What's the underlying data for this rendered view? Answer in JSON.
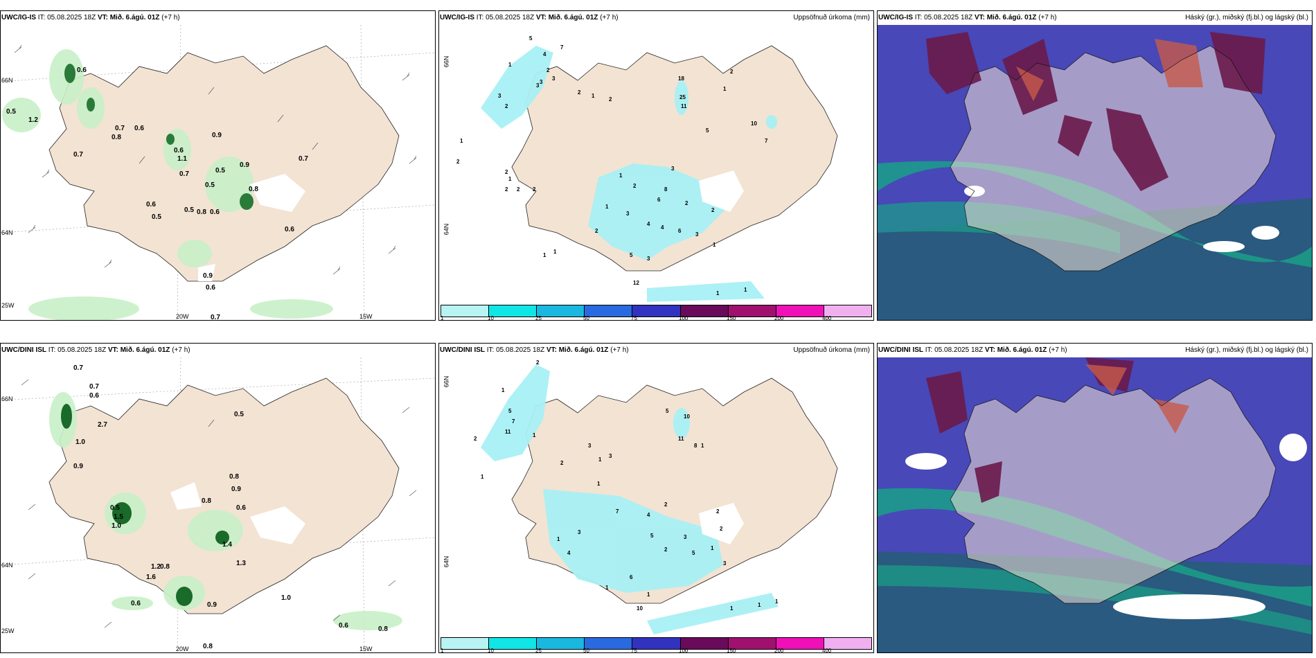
{
  "panels": [
    {
      "title_bold": "UWC/IG-IS",
      "title_rest": " IT: 05.08.2025 18Z ",
      "vt_bold": "VT: Mið. 6.ágú. 01Z",
      "vt_rest": " (+7 h)",
      "right": ""
    },
    {
      "title_bold": "UWC/IG-IS",
      "title_rest": " IT: 05.08.2025 18Z ",
      "vt_bold": "VT: Mið. 6.ágú. 01Z",
      "vt_rest": " (+7 h)",
      "right": "Uppsöfnuð úrkoma (mm)"
    },
    {
      "title_bold": "UWC/IG-IS",
      "title_rest": " IT: 05.08.2025 18Z ",
      "vt_bold": "VT: Mið. 6.ágú. 01Z",
      "vt_rest": " (+7 h)",
      "right": "Háský (gr.), miðský (fj.bl.) og lágský (bl.)"
    },
    {
      "title_bold": "UWC/DINI ISL",
      "title_rest": " IT: 05.08.2025 18Z ",
      "vt_bold": "VT: Mið. 6.ágú. 01Z",
      "vt_rest": " (+7 h)",
      "right": ""
    },
    {
      "title_bold": "UWC/DINI ISL",
      "title_rest": " IT: 05.08.2025 18Z ",
      "vt_bold": "VT: Mið. 6.ágú. 01Z",
      "vt_rest": " (+7 h)",
      "right": "Uppsöfnuð úrkoma (mm)"
    },
    {
      "title_bold": "UWC/DINI ISL",
      "title_rest": " IT: 05.08.2025 18Z ",
      "vt_bold": "VT: Mið. 6.ágú. 01Z",
      "vt_rest": " (+7 h)",
      "right": "Háský (gr.), miðský (fj.bl.) og lágský (bl.)"
    }
  ],
  "axis": {
    "lat66": "66N",
    "lat64": "64N",
    "lon25": "25W",
    "lon20": "20W",
    "lon15": "15W"
  },
  "colorbar": {
    "colors": [
      "#b8f4f4",
      "#10e6e6",
      "#1ab8e0",
      "#2a6ae0",
      "#3232c0",
      "#6a0a5a",
      "#a0106e",
      "#f010b8",
      "#f0b0f0"
    ],
    "labels": [
      "1",
      "10",
      "25",
      "50",
      "75",
      "100",
      "150",
      "200",
      "400"
    ]
  },
  "colors": {
    "land": "#f3e3d3",
    "precip_light": "#c8f0c8",
    "precip_mid": "#7ad07a",
    "precip_dark": "#1a6a2a",
    "rain_cyan": "#a8f0f4",
    "cloud_high": "#6a1a4a",
    "cloud_mid": "#4848b8",
    "cloud_low": "#1aa088"
  },
  "precip_values_top": [
    "0.6",
    "1.2",
    "0.5",
    "0.7",
    "0.6",
    "0.8",
    "0.7",
    "0.9",
    "0.6",
    "1.1",
    "0.7",
    "0.5",
    "0.9",
    "0.8",
    "0.5",
    "0.7",
    "0.5",
    "0.8",
    "0.6",
    "0.6",
    "0.5",
    "0.6",
    "0.9",
    "0.6",
    "0.7"
  ],
  "precip_values_bottom": [
    "0.7",
    "0.7",
    "0.6",
    "2.7",
    "1.0",
    "0.9",
    "0.5",
    "0.5",
    "0.8",
    "0.9",
    "1.5",
    "1.0",
    "1.2",
    "0.8",
    "1.6",
    "0.8",
    "0.6",
    "1.4",
    "1.3",
    "0.6",
    "0.9",
    "1.0",
    "0.6",
    "0.8",
    "0.8"
  ],
  "accum_values_top": [
    "5",
    "4",
    "7",
    "1",
    "3",
    "2",
    "3",
    "1",
    "2",
    "2",
    "1",
    "2",
    "2",
    "1",
    "2",
    "2",
    "2",
    "3",
    "2",
    "3",
    "18",
    "25",
    "11",
    "2",
    "1",
    "5",
    "10",
    "7",
    "1",
    "3",
    "2",
    "6",
    "8",
    "2",
    "4",
    "4",
    "6",
    "3",
    "2",
    "3",
    "1",
    "2",
    "1",
    "1",
    "1",
    "5",
    "12",
    "3",
    "1",
    "1"
  ],
  "accum_values_bottom": [
    "2",
    "1",
    "5",
    "7",
    "11",
    "2",
    "1",
    "3",
    "1",
    "3",
    "10",
    "11",
    "8",
    "1",
    "5",
    "2",
    "1",
    "7",
    "4",
    "2",
    "5",
    "2",
    "3",
    "5",
    "1",
    "4",
    "1",
    "3",
    "1",
    "10",
    "1",
    "1",
    "1",
    "1",
    "1",
    "6",
    "2",
    "2",
    "3"
  ]
}
